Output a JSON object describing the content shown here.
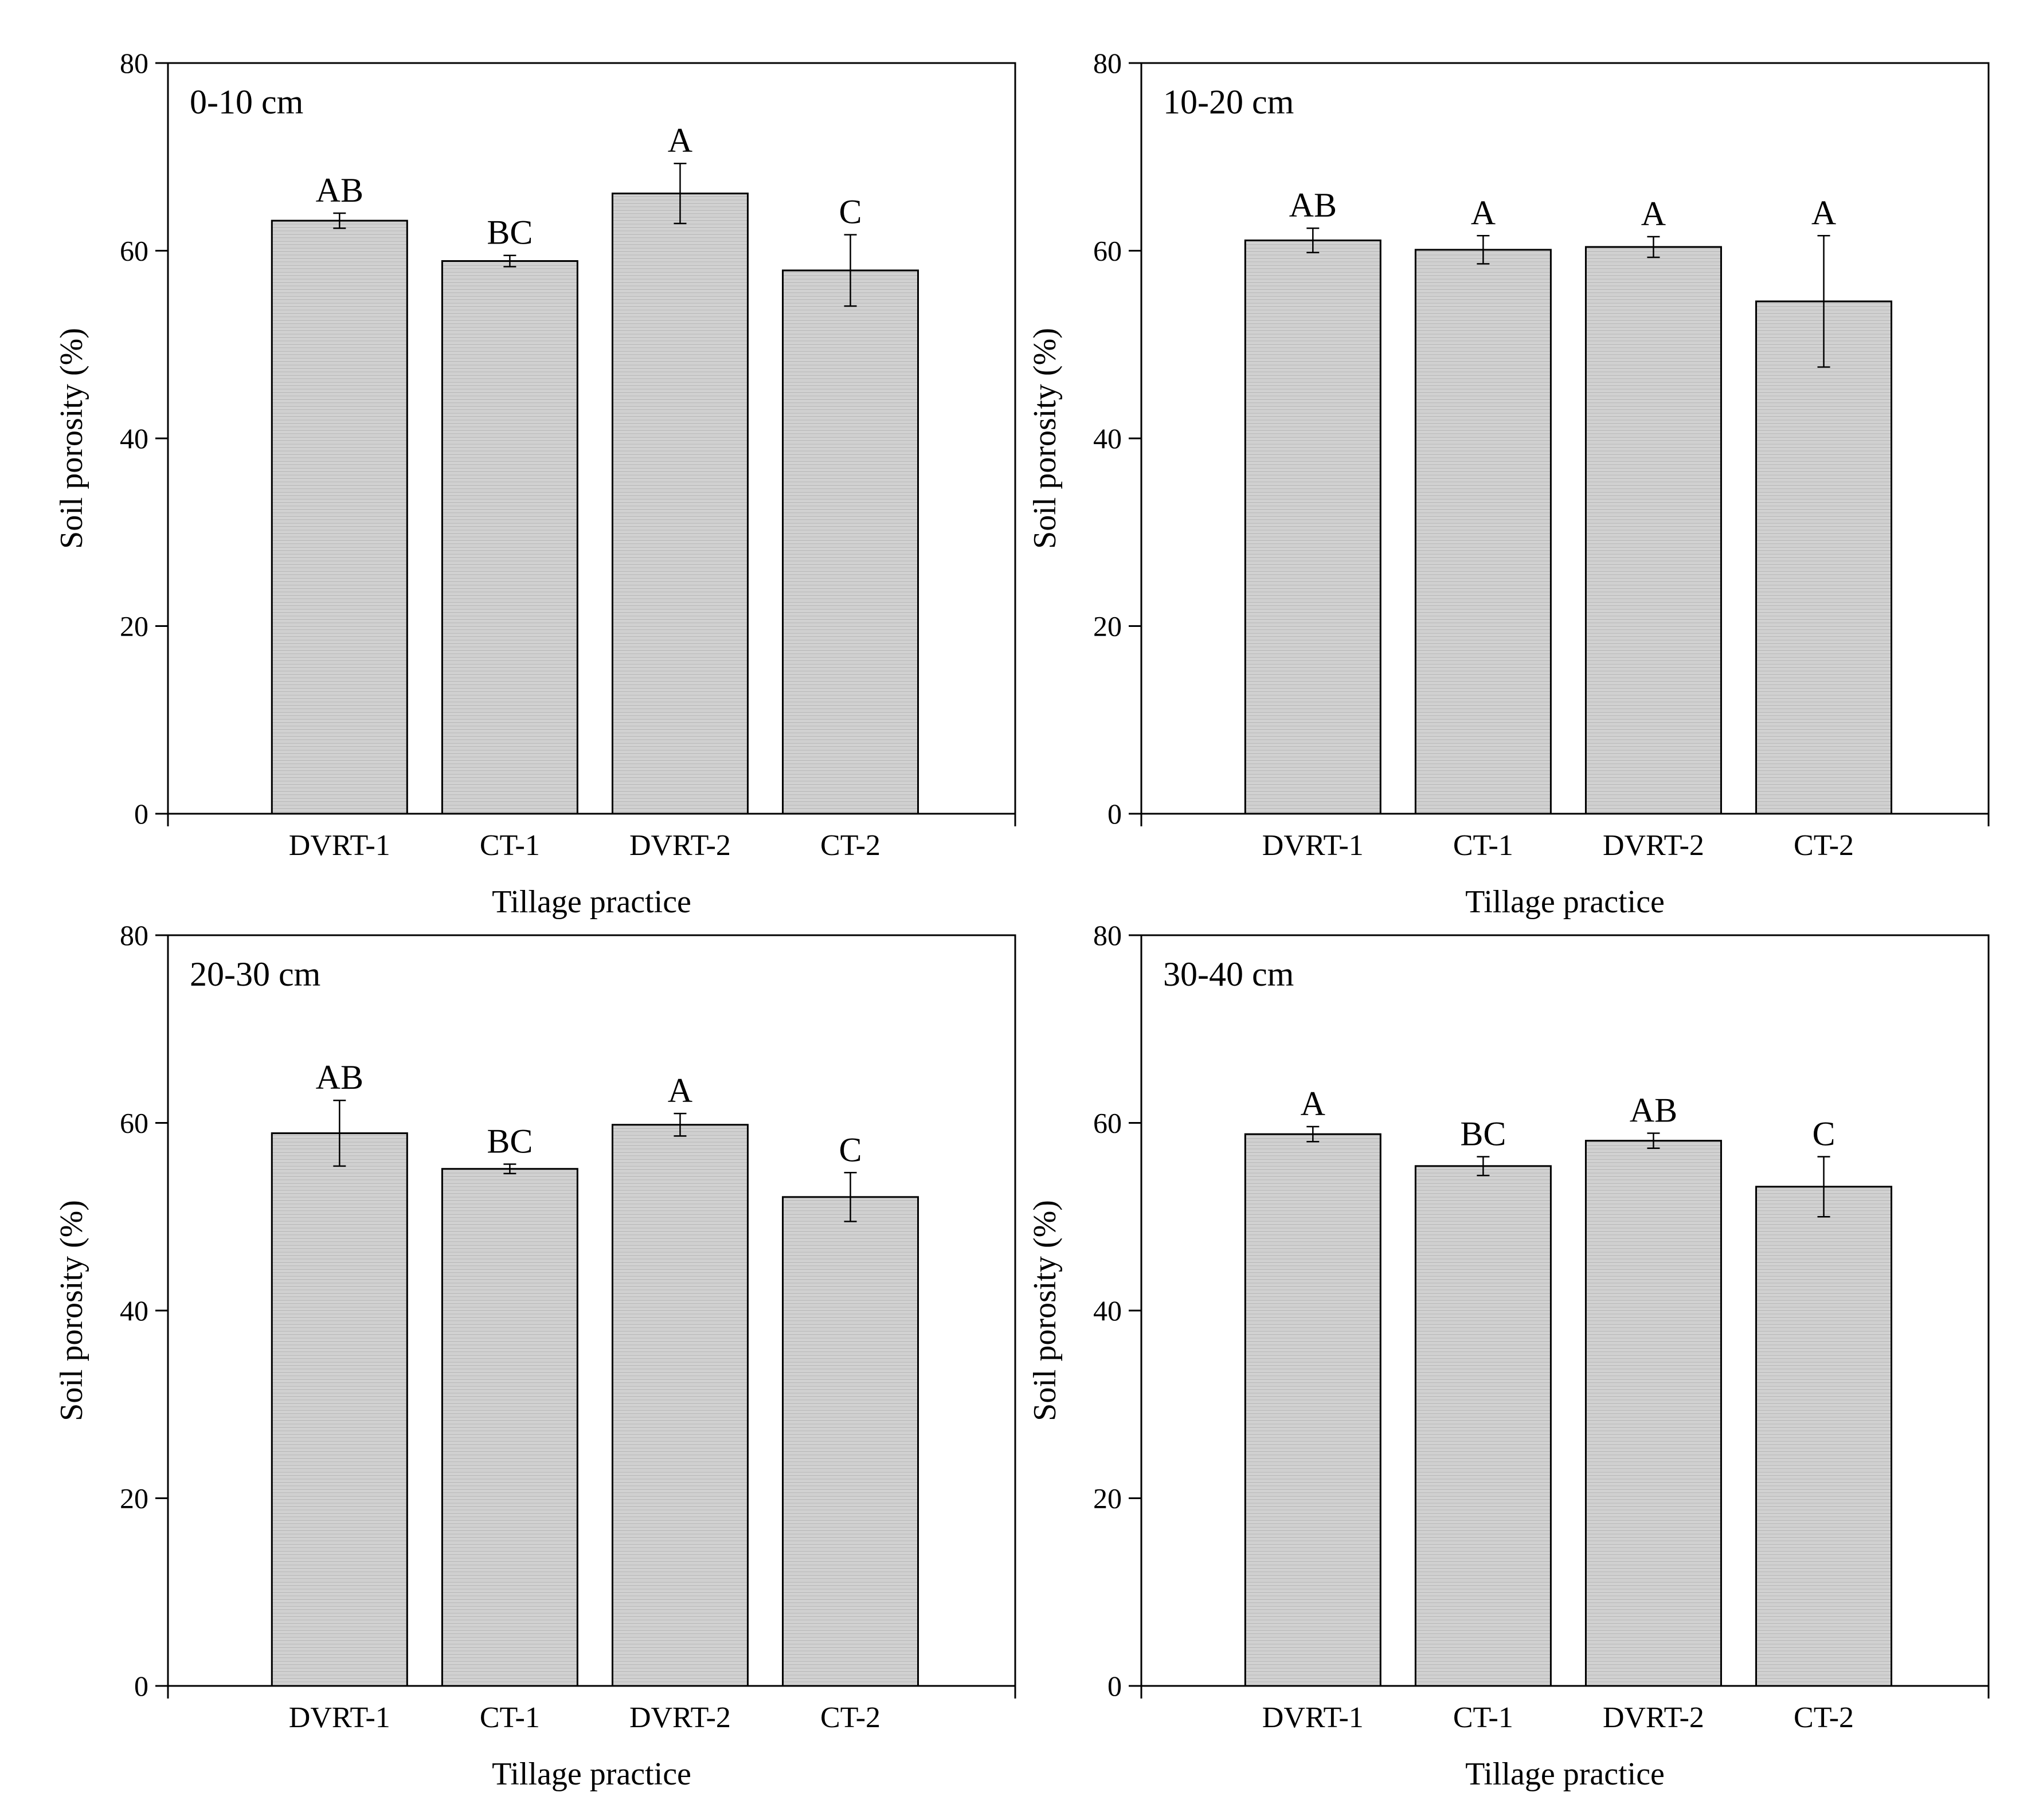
{
  "chart_data": [
    {
      "type": "bar",
      "title": "0-10 cm",
      "xlabel": "Tillage practice",
      "ylabel": "Soil porosity (%)",
      "ylim": [
        0,
        80
      ],
      "yticks": [
        0,
        20,
        40,
        60,
        80
      ],
      "categories": [
        "DVRT-1",
        "CT-1",
        "DVRT-2",
        "CT-2"
      ],
      "values": [
        63.2,
        58.9,
        66.1,
        57.9
      ],
      "errors": [
        0.8,
        0.6,
        3.2,
        3.8
      ],
      "labels": [
        "AB",
        "BC",
        "A",
        "C"
      ]
    },
    {
      "type": "bar",
      "title": "10-20 cm",
      "xlabel": "Tillage practice",
      "ylabel": "Soil porosity (%)",
      "ylim": [
        0,
        80
      ],
      "yticks": [
        0,
        20,
        40,
        60,
        80
      ],
      "categories": [
        "DVRT-1",
        "CT-1",
        "DVRT-2",
        "CT-2"
      ],
      "values": [
        61.1,
        60.1,
        60.4,
        54.6
      ],
      "errors": [
        1.3,
        1.5,
        1.1,
        7.0
      ],
      "labels": [
        "AB",
        "A",
        "A",
        "A"
      ]
    },
    {
      "type": "bar",
      "title": "20-30 cm",
      "xlabel": "Tillage practice",
      "ylabel": "Soil porosity (%)",
      "ylim": [
        0,
        80
      ],
      "yticks": [
        0,
        20,
        40,
        60,
        80
      ],
      "categories": [
        "DVRT-1",
        "CT-1",
        "DVRT-2",
        "CT-2"
      ],
      "values": [
        58.9,
        55.1,
        59.8,
        52.1
      ],
      "errors": [
        3.5,
        0.5,
        1.2,
        2.6
      ],
      "labels": [
        "AB",
        "BC",
        "A",
        "C"
      ]
    },
    {
      "type": "bar",
      "title": "30-40 cm",
      "xlabel": "Tillage practice",
      "ylabel": "Soil porosity (%)",
      "ylim": [
        0,
        80
      ],
      "yticks": [
        0,
        20,
        40,
        60,
        80
      ],
      "categories": [
        "DVRT-1",
        "CT-1",
        "DVRT-2",
        "CT-2"
      ],
      "values": [
        58.8,
        55.4,
        58.1,
        53.2
      ],
      "errors": [
        0.8,
        1.0,
        0.8,
        3.2
      ],
      "labels": [
        "A",
        "BC",
        "AB",
        "C"
      ]
    }
  ],
  "colors": {
    "bar_fill": "#d4d4d4",
    "bar_stroke": "#000000",
    "axis": "#000000"
  }
}
